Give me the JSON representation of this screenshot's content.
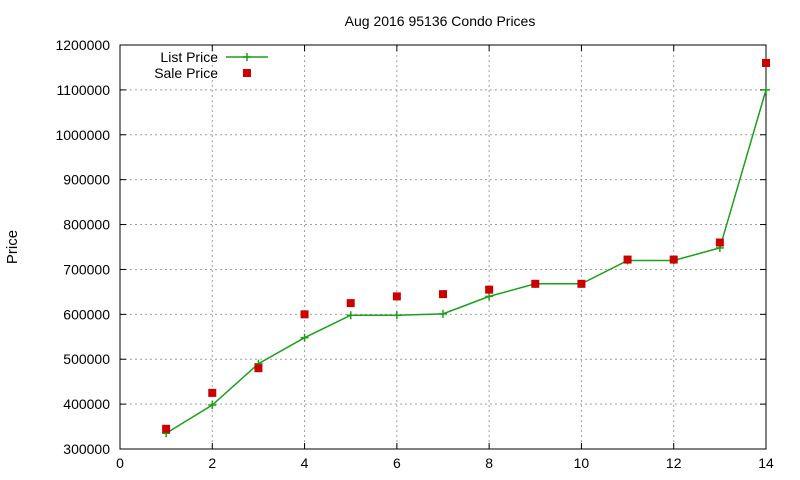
{
  "chart_data": {
    "type": "line",
    "title": "Aug 2016 95136 Condo Prices",
    "xlabel": "",
    "ylabel": "Price",
    "xlim": [
      0,
      14
    ],
    "ylim": [
      300000,
      1200000
    ],
    "xticks": [
      0,
      2,
      4,
      6,
      8,
      10,
      12,
      14
    ],
    "yticks": [
      300000,
      400000,
      500000,
      600000,
      700000,
      800000,
      900000,
      1000000,
      1100000,
      1200000
    ],
    "grid": true,
    "legend_position": "top-left",
    "series": [
      {
        "name": "List Price",
        "style": "line-with-plus-markers",
        "color": "#1aa01a",
        "x": [
          1,
          2,
          3,
          4,
          5,
          6,
          7,
          8,
          9,
          10,
          11,
          12,
          13,
          14
        ],
        "y": [
          335000,
          398000,
          490000,
          548000,
          598000,
          598000,
          601000,
          640000,
          668000,
          668000,
          720000,
          720000,
          748000,
          1100000
        ]
      },
      {
        "name": "Sale Price",
        "style": "square-markers",
        "color": "#cc0000",
        "x": [
          1,
          2,
          3,
          4,
          5,
          6,
          7,
          8,
          9,
          10,
          11,
          12,
          13,
          14
        ],
        "y": [
          345000,
          425000,
          480000,
          600000,
          625000,
          640000,
          645000,
          655000,
          668000,
          668000,
          722000,
          722000,
          760000,
          1160000
        ]
      }
    ]
  }
}
